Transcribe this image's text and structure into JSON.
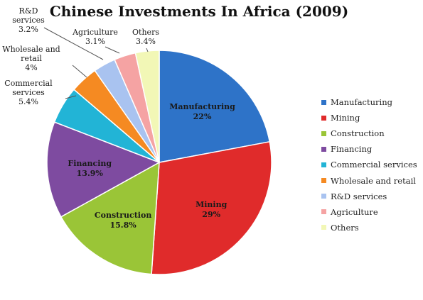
{
  "chart_data": {
    "type": "pie",
    "title": "Chinese Investments In Africa (2009)",
    "slices": [
      {
        "name": "Manufacturing",
        "value": 22,
        "label": "22%",
        "color": "#2e73c8",
        "label_pos": "inside"
      },
      {
        "name": "Mining",
        "value": 29,
        "label": "29%",
        "color": "#e02b2b",
        "label_pos": "inside"
      },
      {
        "name": "Construction",
        "value": 15.8,
        "label": "15.8%",
        "color": "#9ac537",
        "label_pos": "inside"
      },
      {
        "name": "Financing",
        "value": 13.9,
        "label": "13.9%",
        "color": "#7e4ba0",
        "label_pos": "inside"
      },
      {
        "name": "Commercial services",
        "value": 5.4,
        "label": "5.4%",
        "color": "#22b4d6",
        "label_pos": "outside",
        "label_lines": [
          "Commercial",
          "services"
        ]
      },
      {
        "name": "Wholesale and retail",
        "value": 4,
        "label": "4%",
        "color": "#f58a22",
        "label_pos": "outside",
        "label_lines": [
          "Wholesale and",
          "retail"
        ]
      },
      {
        "name": "R&D services",
        "value": 3.2,
        "label": "3.2%",
        "color": "#a9c3f0",
        "label_pos": "outside",
        "label_lines": [
          "R&D",
          "services"
        ]
      },
      {
        "name": "Agriculture",
        "value": 3.1,
        "label": "3.1%",
        "color": "#f5a3a3",
        "label_pos": "outside",
        "label_lines": [
          "Agriculture"
        ]
      },
      {
        "name": "Others",
        "value": 3.4,
        "label": "3.4%",
        "color": "#f2f7b6",
        "label_pos": "outside",
        "label_lines": [
          "Others"
        ]
      }
    ],
    "legend_placement": "right"
  }
}
